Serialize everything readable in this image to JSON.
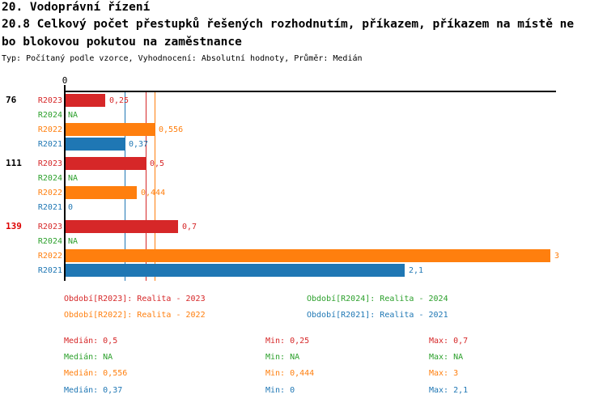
{
  "header": {
    "title": "20. Vodoprávní řízení",
    "subtitle_line1": "20.8 Celkový počet přestupků řešených rozhodnutím, příkazem, příkazem na místě ne",
    "subtitle_line2": "bo blokovou pokutou na zaměstnance",
    "meta": "Typ: Počítaný podle vzorce, Vyhodnocení: Absolutní hodnoty, Průměr: Medián"
  },
  "colors": {
    "R2023": "#d62728",
    "R2024": "#2ca02c",
    "R2022": "#ff7f0e",
    "R2021": "#1f77b4",
    "axis": "#000000",
    "group_label": "#000000",
    "group_label_highlight": "#dd0000"
  },
  "chart_data": {
    "type": "bar",
    "orientation": "horizontal",
    "title": "20.8 Celkový počet přestupků řešených rozhodnutím, příkazem, příkazem na místě nebo blokovou pokutou na zaměstnance",
    "x_axis": {
      "tick_labels": [
        "0"
      ],
      "xlim": [
        0,
        3.03
      ],
      "gridlines": false
    },
    "series_order": [
      "R2023",
      "R2024",
      "R2022",
      "R2021"
    ],
    "groups": [
      {
        "label": "76",
        "highlighted": false,
        "label_color": "#000000",
        "values": {
          "R2023": 0.25,
          "R2024": null,
          "R2022": 0.556,
          "R2021": 0.37
        },
        "value_labels": {
          "R2023": "0,25",
          "R2024": "NA",
          "R2022": "0,556",
          "R2021": "0,37"
        }
      },
      {
        "label": "111",
        "highlighted": false,
        "label_color": "#000000",
        "values": {
          "R2023": 0.5,
          "R2024": null,
          "R2022": 0.444,
          "R2021": 0
        },
        "value_labels": {
          "R2023": "0,5",
          "R2024": "NA",
          "R2022": "0,444",
          "R2021": "0"
        }
      },
      {
        "label": "139",
        "highlighted": true,
        "label_color": "#dd0000",
        "values": {
          "R2023": 0.7,
          "R2024": null,
          "R2022": 3,
          "R2021": 2.1
        },
        "value_labels": {
          "R2023": "0,7",
          "R2024": "NA",
          "R2022": "3",
          "R2021": "2,1"
        }
      }
    ],
    "median_lines": [
      {
        "series": "R2021",
        "value": 0.37
      },
      {
        "series": "R2023",
        "value": 0.5
      },
      {
        "series": "R2022",
        "value": 0.556
      }
    ]
  },
  "legend": {
    "items": [
      {
        "series": "R2023",
        "label": "Období[R2023]: Realita - 2023"
      },
      {
        "series": "R2024",
        "label": "Období[R2024]: Realita - 2024"
      },
      {
        "series": "R2022",
        "label": "Období[R2022]: Realita - 2022"
      },
      {
        "series": "R2021",
        "label": "Období[R2021]: Realita - 2021"
      }
    ]
  },
  "stats": {
    "rows": [
      {
        "series": "R2023",
        "median": "Medián: 0,5",
        "min": "Min: 0,25",
        "max": "Max: 0,7"
      },
      {
        "series": "R2024",
        "median": "Medián: NA",
        "min": "Min: NA",
        "max": "Max: NA"
      },
      {
        "series": "R2022",
        "median": "Medián: 0,556",
        "min": "Min: 0,444",
        "max": "Max: 3"
      },
      {
        "series": "R2021",
        "median": "Medián: 0,37",
        "min": "Min: 0",
        "max": "Max: 2,1"
      }
    ]
  }
}
